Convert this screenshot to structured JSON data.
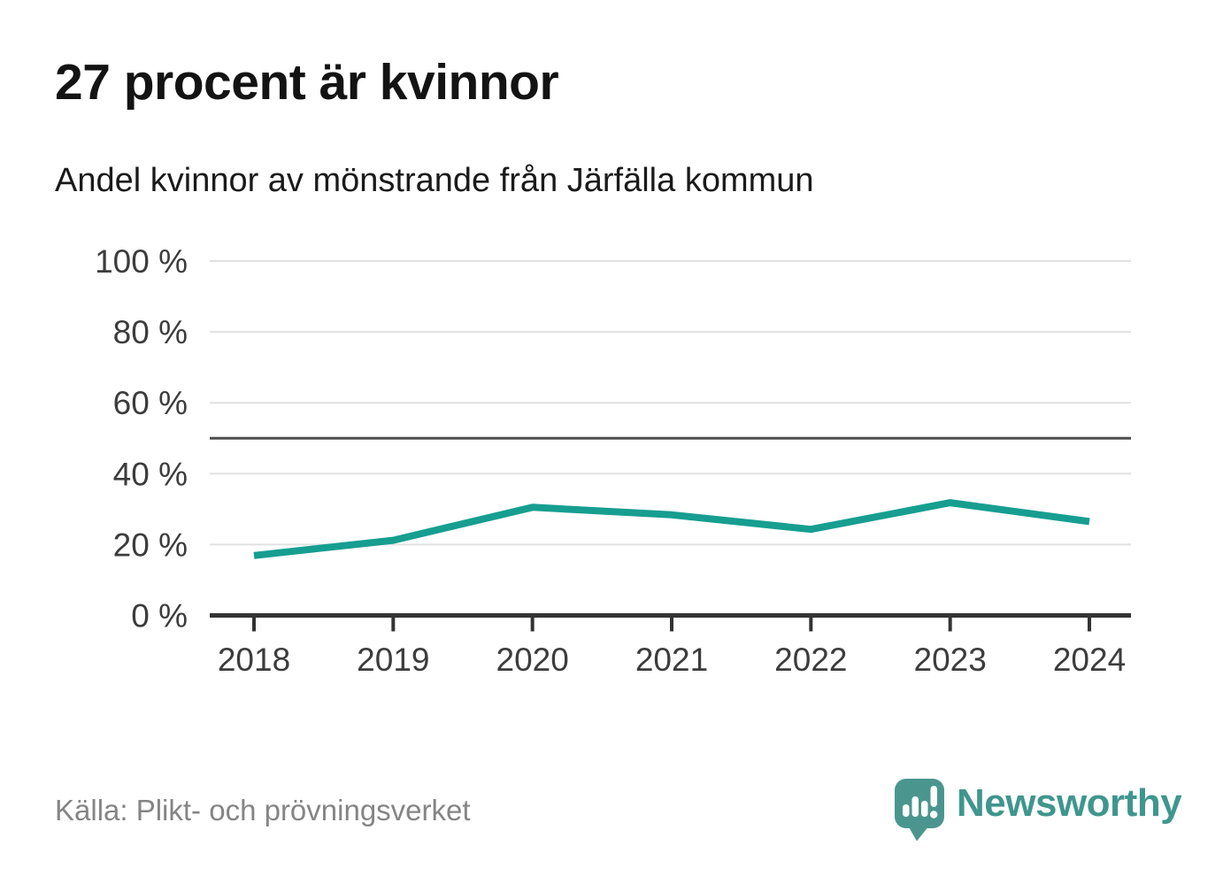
{
  "header": {
    "title": "27 procent är kvinnor",
    "subtitle": "Andel kvinnor av mönstrande från Järfälla kommun"
  },
  "chart_data": {
    "type": "line",
    "title": "27 procent är kvinnor",
    "subtitle": "Andel kvinnor av mönstrande från Järfälla kommun",
    "categories": [
      "2018",
      "2019",
      "2020",
      "2021",
      "2022",
      "2023",
      "2024"
    ],
    "series": [
      {
        "name": "Andel kvinnor av mönstrande",
        "values": [
          16.9,
          21.2,
          30.5,
          28.4,
          24.3,
          31.8,
          26.5
        ]
      }
    ],
    "xlabel": "",
    "ylabel": "",
    "ylim": [
      0,
      100
    ],
    "yticks": [
      0,
      20,
      40,
      60,
      80,
      100
    ],
    "ytick_suffix": " %",
    "reference_line": 50,
    "grid": true,
    "legend": "none",
    "colors": {
      "line": "#169e90",
      "grid": "#e1e1e1",
      "axis": "#333333",
      "axis_text": "#3c3c3c",
      "reference": "#4d4d4d"
    }
  },
  "footer": {
    "source": "Källa: Plikt- och prövningsverket",
    "brand": "Newsworthy"
  },
  "colors": {
    "brand": "#3f968e",
    "source_text": "#858585",
    "logo_icon_fill": "#4a968e"
  }
}
